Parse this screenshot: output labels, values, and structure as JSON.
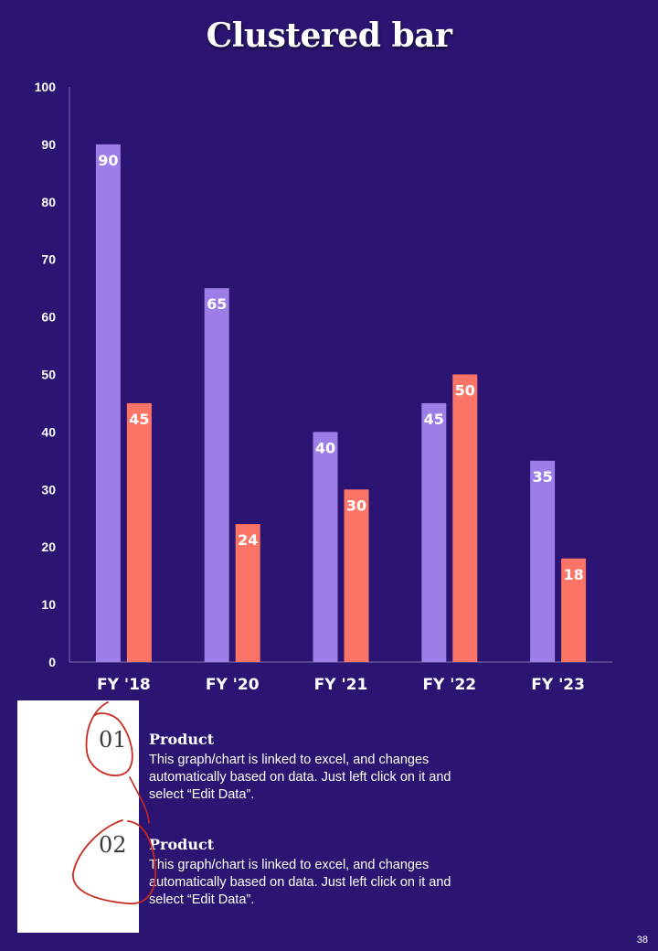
{
  "title": "Clustered bar",
  "colors": {
    "background": "#2c1572",
    "series1": "#9d7de6",
    "series2": "#fb7466",
    "axis": "#7b6fae"
  },
  "chart_data": {
    "type": "bar",
    "title": "Clustered bar",
    "categories": [
      "FY '18",
      "FY '20",
      "FY '21",
      "FY '22",
      "FY '23"
    ],
    "series": [
      {
        "values": [
          90,
          65,
          40,
          45,
          35
        ],
        "color": "#9d7de6"
      },
      {
        "values": [
          45,
          24,
          30,
          50,
          18
        ],
        "color": "#fb7466"
      }
    ],
    "ylim": [
      0,
      100
    ],
    "yticks": [
      0,
      10,
      20,
      30,
      40,
      50,
      60,
      70,
      80,
      90,
      100
    ],
    "data_labels": true,
    "grid": false,
    "legend": "none"
  },
  "items": [
    {
      "number": "01",
      "heading": "Product",
      "text": "This graph/chart is linked to excel, and changes automatically based on data. Just left click on it and select “Edit Data”."
    },
    {
      "number": "02",
      "heading": "Product",
      "text": "This graph/chart is linked to excel, and changes automatically based on data. Just left click on it and select “Edit Data”."
    }
  ],
  "page_number": "38"
}
